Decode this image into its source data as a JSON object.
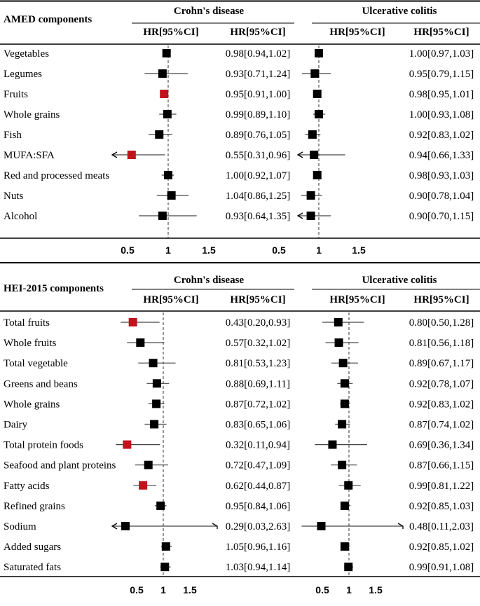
{
  "chart_data": {
    "type": "forest",
    "colors": {
      "significant": "#c0141c",
      "normal": "#000000",
      "ci_line": "#444444",
      "ref_line": "#555555"
    },
    "axis_ticks": [
      0.5,
      1,
      1.5
    ],
    "tick_labels": [
      "0.5",
      "1",
      "1.5"
    ],
    "reference_value": 1,
    "panels": [
      {
        "title": "AMED components",
        "groups": [
          "Crohn's disease",
          "Ulcerative colitis"
        ],
        "col_header": "HR[95%CI]",
        "rows": [
          {
            "label": "Vegetables",
            "cd": {
              "hr": 0.98,
              "lo": 0.94,
              "hi": 1.02,
              "text": "0.98[0.94,1.02]",
              "sig": false
            },
            "uc": {
              "hr": 1.0,
              "lo": 0.97,
              "hi": 1.03,
              "text": "1.00[0.97,1.03]",
              "sig": false
            }
          },
          {
            "label": "Legumes",
            "cd": {
              "hr": 0.93,
              "lo": 0.71,
              "hi": 1.24,
              "text": "0.93[0.71,1.24]",
              "sig": false
            },
            "uc": {
              "hr": 0.95,
              "lo": 0.79,
              "hi": 1.15,
              "text": "0.95[0.79,1.15]",
              "sig": false
            }
          },
          {
            "label": "Fruits",
            "cd": {
              "hr": 0.95,
              "lo": 0.91,
              "hi": 1.0,
              "text": "0.95[0.91,1.00]",
              "sig": true
            },
            "uc": {
              "hr": 0.98,
              "lo": 0.95,
              "hi": 1.01,
              "text": "0.98[0.95,1.01]",
              "sig": false
            }
          },
          {
            "label": "Whole grains",
            "cd": {
              "hr": 0.99,
              "lo": 0.89,
              "hi": 1.1,
              "text": "0.99[0.89,1.10]",
              "sig": false
            },
            "uc": {
              "hr": 1.0,
              "lo": 0.93,
              "hi": 1.08,
              "text": "1.00[0.93,1.08]",
              "sig": false
            }
          },
          {
            "label": "Fish",
            "cd": {
              "hr": 0.89,
              "lo": 0.76,
              "hi": 1.05,
              "text": "0.89[0.76,1.05]",
              "sig": false
            },
            "uc": {
              "hr": 0.92,
              "lo": 0.83,
              "hi": 1.02,
              "text": "0.92[0.83,1.02]",
              "sig": false
            }
          },
          {
            "label": "MUFA:SFA",
            "cd": {
              "hr": 0.55,
              "lo": 0.31,
              "hi": 0.96,
              "text": "0.55[0.31,0.96]",
              "sig": true
            },
            "uc": {
              "hr": 0.94,
              "lo": 0.66,
              "hi": 1.33,
              "text": "0.94[0.66,1.33]",
              "sig": false
            }
          },
          {
            "label": "Red and  processed meats",
            "cd": {
              "hr": 1.0,
              "lo": 0.92,
              "hi": 1.07,
              "text": "1.00[0.92,1.07]",
              "sig": false
            },
            "uc": {
              "hr": 0.98,
              "lo": 0.93,
              "hi": 1.03,
              "text": "0.98[0.93,1.03]",
              "sig": false
            }
          },
          {
            "label": "Nuts",
            "cd": {
              "hr": 1.04,
              "lo": 0.86,
              "hi": 1.25,
              "text": "1.04[0.86,1.25]",
              "sig": false
            },
            "uc": {
              "hr": 0.9,
              "lo": 0.78,
              "hi": 1.04,
              "text": "0.90[0.78,1.04]",
              "sig": false
            }
          },
          {
            "label": "Alcohol",
            "cd": {
              "hr": 0.93,
              "lo": 0.64,
              "hi": 1.35,
              "text": "0.93[0.64,1.35]",
              "sig": false
            },
            "uc": {
              "hr": 0.9,
              "lo": 0.7,
              "hi": 1.15,
              "text": "0.90[0.70,1.15]",
              "sig": false
            }
          }
        ]
      },
      {
        "title": "HEI-2015 components",
        "groups": [
          "Crohn's disease",
          "Ulcerative colitis"
        ],
        "col_header": "HR[95%CI]",
        "rows": [
          {
            "label": "Total fruits",
            "cd": {
              "hr": 0.43,
              "lo": 0.2,
              "hi": 0.93,
              "text": "0.43[0.20,0.93]",
              "sig": true
            },
            "uc": {
              "hr": 0.8,
              "lo": 0.5,
              "hi": 1.28,
              "text": "0.80[0.50,1.28]",
              "sig": false
            }
          },
          {
            "label": "Whole fruits",
            "cd": {
              "hr": 0.57,
              "lo": 0.32,
              "hi": 1.02,
              "text": "0.57[0.32,1.02]",
              "sig": false
            },
            "uc": {
              "hr": 0.81,
              "lo": 0.56,
              "hi": 1.18,
              "text": "0.81[0.56,1.18]",
              "sig": false
            }
          },
          {
            "label": "Total vegetable",
            "cd": {
              "hr": 0.81,
              "lo": 0.53,
              "hi": 1.23,
              "text": "0.81[0.53,1.23]",
              "sig": false
            },
            "uc": {
              "hr": 0.89,
              "lo": 0.67,
              "hi": 1.17,
              "text": "0.89[0.67,1.17]",
              "sig": false
            }
          },
          {
            "label": "Greens and beans",
            "cd": {
              "hr": 0.88,
              "lo": 0.69,
              "hi": 1.11,
              "text": "0.88[0.69,1.11]",
              "sig": false
            },
            "uc": {
              "hr": 0.92,
              "lo": 0.78,
              "hi": 1.07,
              "text": "0.92[0.78,1.07]",
              "sig": false
            }
          },
          {
            "label": "Whole grains",
            "cd": {
              "hr": 0.87,
              "lo": 0.72,
              "hi": 1.02,
              "text": "0.87[0.72,1.02]",
              "sig": false
            },
            "uc": {
              "hr": 0.92,
              "lo": 0.83,
              "hi": 1.02,
              "text": "0.92[0.83,1.02]",
              "sig": false
            }
          },
          {
            "label": "Dairy",
            "cd": {
              "hr": 0.83,
              "lo": 0.65,
              "hi": 1.06,
              "text": "0.83[0.65,1.06]",
              "sig": false
            },
            "uc": {
              "hr": 0.87,
              "lo": 0.74,
              "hi": 1.02,
              "text": "0.87[0.74,1.02]",
              "sig": false
            }
          },
          {
            "label": "Total protein foods",
            "cd": {
              "hr": 0.32,
              "lo": 0.11,
              "hi": 0.94,
              "text": "0.32[0.11,0.94]",
              "sig": true
            },
            "uc": {
              "hr": 0.69,
              "lo": 0.36,
              "hi": 1.34,
              "text": "0.69[0.36,1.34]",
              "sig": false
            }
          },
          {
            "label": "Seafood and plant proteins",
            "cd": {
              "hr": 0.72,
              "lo": 0.47,
              "hi": 1.09,
              "text": "0.72[0.47,1.09]",
              "sig": false
            },
            "uc": {
              "hr": 0.87,
              "lo": 0.66,
              "hi": 1.15,
              "text": "0.87[0.66,1.15]",
              "sig": false
            }
          },
          {
            "label": "Fatty acids",
            "cd": {
              "hr": 0.62,
              "lo": 0.44,
              "hi": 0.87,
              "text": "0.62[0.44,0.87]",
              "sig": true
            },
            "uc": {
              "hr": 0.99,
              "lo": 0.81,
              "hi": 1.22,
              "text": "0.99[0.81,1.22]",
              "sig": false
            }
          },
          {
            "label": "Refined grains",
            "cd": {
              "hr": 0.95,
              "lo": 0.84,
              "hi": 1.06,
              "text": "0.95[0.84,1.06]",
              "sig": false
            },
            "uc": {
              "hr": 0.92,
              "lo": 0.85,
              "hi": 1.03,
              "text": "0.92[0.85,1.03]",
              "sig": false
            }
          },
          {
            "label": "Sodium",
            "cd": {
              "hr": 0.29,
              "lo": 0.03,
              "hi": 2.63,
              "text": "0.29[0.03,2.63]",
              "sig": false
            },
            "uc": {
              "hr": 0.48,
              "lo": 0.11,
              "hi": 2.03,
              "text": "0.48[0.11,2.03]",
              "sig": false
            }
          },
          {
            "label": "Added sugars",
            "cd": {
              "hr": 1.05,
              "lo": 0.96,
              "hi": 1.16,
              "text": "1.05[0.96,1.16]",
              "sig": false
            },
            "uc": {
              "hr": 0.92,
              "lo": 0.85,
              "hi": 1.02,
              "text": "0.92[0.85,1.02]",
              "sig": false
            }
          },
          {
            "label": "Saturated fats",
            "cd": {
              "hr": 1.03,
              "lo": 0.94,
              "hi": 1.14,
              "text": "1.03[0.94,1.14]",
              "sig": false
            },
            "uc": {
              "hr": 0.99,
              "lo": 0.91,
              "hi": 1.08,
              "text": "0.99[0.91,1.08]",
              "sig": false
            }
          }
        ]
      }
    ]
  }
}
